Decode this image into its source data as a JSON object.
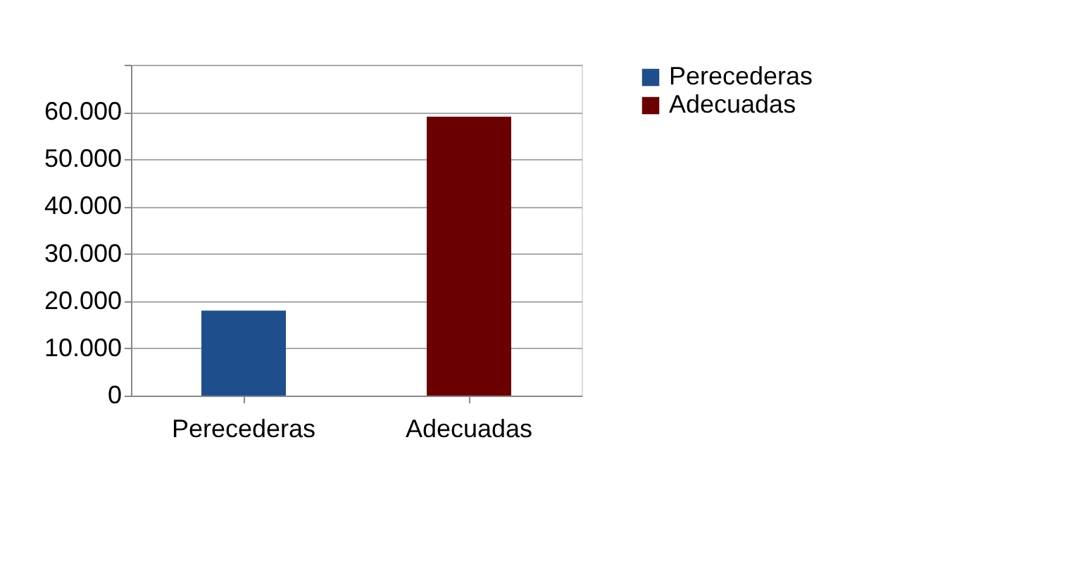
{
  "chart_data": {
    "type": "bar",
    "categories": [
      "Perecederas",
      "Adecuadas"
    ],
    "series": [
      {
        "name": "Perecederas",
        "color": "#1f4e8c",
        "values": [
          18000,
          null
        ]
      },
      {
        "name": "Adecuadas",
        "color": "#6b0000",
        "values": [
          null,
          59000
        ]
      }
    ],
    "ylim": [
      0,
      70000
    ],
    "yticks": [
      {
        "value": 0,
        "label": "0"
      },
      {
        "value": 10000,
        "label": "10.000"
      },
      {
        "value": 20000,
        "label": "20.000"
      },
      {
        "value": 30000,
        "label": "30.000"
      },
      {
        "value": 40000,
        "label": "40.000"
      },
      {
        "value": 50000,
        "label": "50.000"
      },
      {
        "value": 60000,
        "label": "60.000"
      },
      {
        "value": 70000,
        "label": null
      }
    ],
    "grid": "y",
    "legend": "right"
  }
}
